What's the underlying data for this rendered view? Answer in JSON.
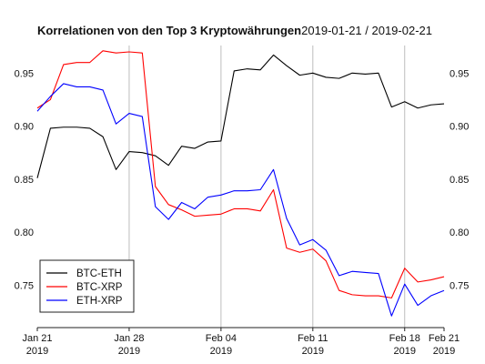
{
  "chart_data": {
    "type": "line",
    "title": "Korrelationen von den Top 3 Kryptowährungen",
    "subtitle": "2019-01-21 / 2019-02-21",
    "xlim": [
      "2019-01-21",
      "2019-02-21"
    ],
    "ylim": [
      0.71,
      0.976
    ],
    "y_ticks": [
      "0.75",
      "0.80",
      "0.85",
      "0.90",
      "0.95"
    ],
    "y_tick_values": [
      0.75,
      0.8,
      0.85,
      0.9,
      0.95
    ],
    "x_ticks": [
      {
        "date": "2019-01-21",
        "label1": "Jan 21",
        "label2": "2019"
      },
      {
        "date": "2019-01-28",
        "label1": "Jan 28",
        "label2": "2019"
      },
      {
        "date": "2019-02-04",
        "label1": "Feb 04",
        "label2": "2019"
      },
      {
        "date": "2019-02-11",
        "label1": "Feb 11",
        "label2": "2019"
      },
      {
        "date": "2019-02-18",
        "label1": "Feb 18",
        "label2": "2019"
      },
      {
        "date": "2019-02-21",
        "label1": "Feb 21",
        "label2": "2019"
      }
    ],
    "grid": "vertical lines at date ticks",
    "y_axis_sides": "left and right",
    "legend_position": "bottom-left",
    "x": [
      "2019-01-21",
      "2019-01-22",
      "2019-01-23",
      "2019-01-24",
      "2019-01-25",
      "2019-01-26",
      "2019-01-27",
      "2019-01-28",
      "2019-01-29",
      "2019-01-30",
      "2019-01-31",
      "2019-02-01",
      "2019-02-02",
      "2019-02-03",
      "2019-02-04",
      "2019-02-05",
      "2019-02-06",
      "2019-02-07",
      "2019-02-08",
      "2019-02-09",
      "2019-02-10",
      "2019-02-11",
      "2019-02-12",
      "2019-02-13",
      "2019-02-14",
      "2019-02-15",
      "2019-02-16",
      "2019-02-17",
      "2019-02-18",
      "2019-02-19",
      "2019-02-20",
      "2019-02-21"
    ],
    "series": [
      {
        "name": "BTC-ETH",
        "color": "#000000",
        "values": [
          0.851,
          0.898,
          0.899,
          0.899,
          0.898,
          0.89,
          0.859,
          0.876,
          0.875,
          0.872,
          0.863,
          0.881,
          0.879,
          0.885,
          0.886,
          0.952,
          0.954,
          0.953,
          0.967,
          0.957,
          0.948,
          0.95,
          0.946,
          0.945,
          0.95,
          0.949,
          0.95,
          0.918,
          0.923,
          0.917,
          0.92,
          0.921
        ]
      },
      {
        "name": "BTC-XRP",
        "color": "#ff0000",
        "values": [
          0.917,
          0.925,
          0.958,
          0.96,
          0.96,
          0.971,
          0.969,
          0.97,
          0.969,
          0.843,
          0.826,
          0.821,
          0.815,
          0.816,
          0.817,
          0.822,
          0.822,
          0.82,
          0.84,
          0.785,
          0.781,
          0.784,
          0.773,
          0.745,
          0.741,
          0.74,
          0.74,
          0.738,
          0.766,
          0.753,
          0.755,
          0.758
        ]
      },
      {
        "name": "ETH-XRP",
        "color": "#0000ff",
        "values": [
          0.914,
          0.928,
          0.94,
          0.937,
          0.937,
          0.934,
          0.902,
          0.912,
          0.909,
          0.824,
          0.812,
          0.828,
          0.822,
          0.833,
          0.835,
          0.839,
          0.839,
          0.84,
          0.859,
          0.813,
          0.788,
          0.793,
          0.783,
          0.759,
          0.763,
          0.762,
          0.761,
          0.721,
          0.751,
          0.731,
          0.74,
          0.745
        ]
      }
    ]
  }
}
